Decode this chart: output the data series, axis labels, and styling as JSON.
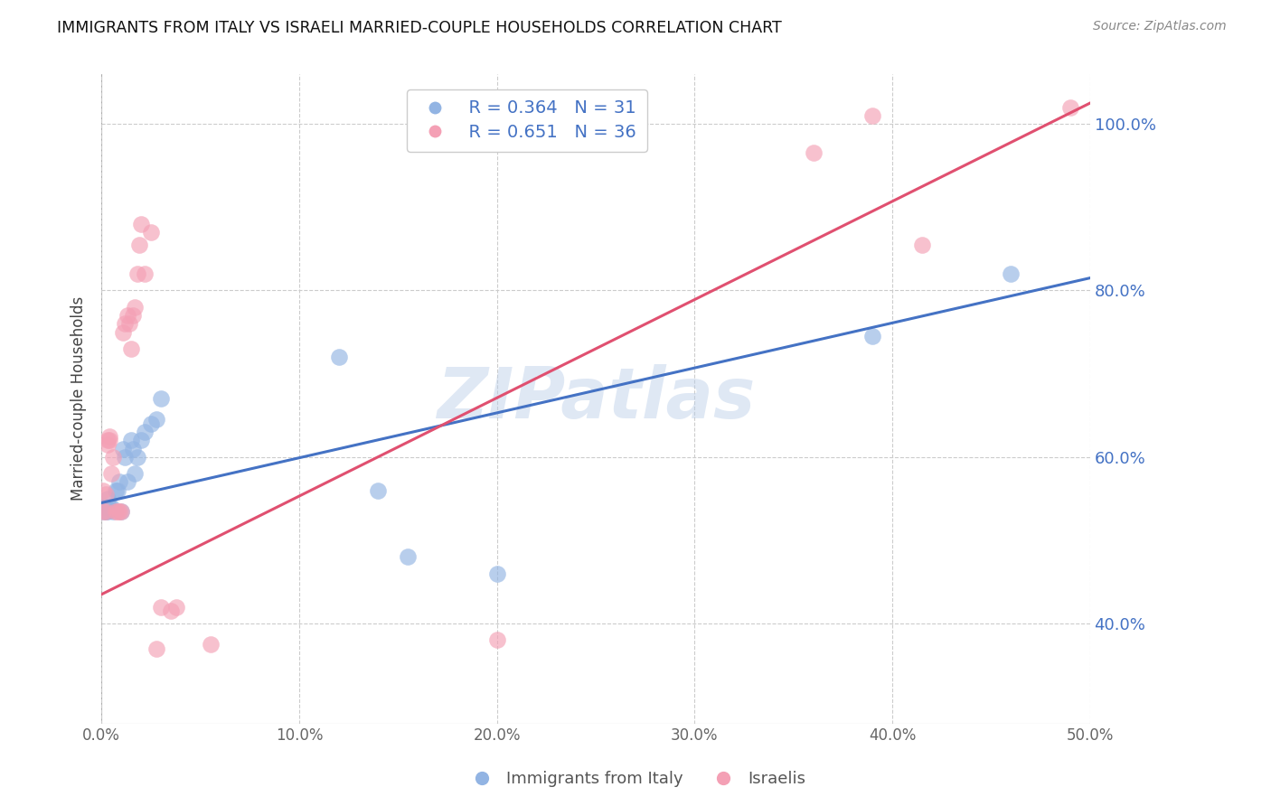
{
  "title": "IMMIGRANTS FROM ITALY VS ISRAELI MARRIED-COUPLE HOUSEHOLDS CORRELATION CHART",
  "source": "Source: ZipAtlas.com",
  "ylabel": "Married-couple Households",
  "xlim": [
    0.0,
    0.5
  ],
  "ylim": [
    0.28,
    1.06
  ],
  "yticks": [
    0.4,
    0.6,
    0.8,
    1.0
  ],
  "xticks": [
    0.0,
    0.1,
    0.2,
    0.3,
    0.4,
    0.5
  ],
  "legend_r_italy": "R = 0.364",
  "legend_n_italy": "N = 31",
  "legend_r_israeli": "R = 0.651",
  "legend_n_israeli": "N = 36",
  "color_italy": "#92b4e3",
  "color_israeli": "#f4a0b5",
  "color_italy_line": "#4472c4",
  "color_israeli_line": "#e05070",
  "color_axis_right": "#4472c4",
  "watermark": "ZIPatlas",
  "italy_x": [
    0.001,
    0.001,
    0.002,
    0.002,
    0.003,
    0.003,
    0.004,
    0.005,
    0.006,
    0.007,
    0.008,
    0.009,
    0.01,
    0.011,
    0.012,
    0.013,
    0.015,
    0.016,
    0.017,
    0.018,
    0.02,
    0.022,
    0.025,
    0.028,
    0.03,
    0.12,
    0.14,
    0.155,
    0.2,
    0.39,
    0.46
  ],
  "italy_y": [
    0.535,
    0.54,
    0.54,
    0.535,
    0.535,
    0.55,
    0.54,
    0.54,
    0.535,
    0.56,
    0.56,
    0.57,
    0.535,
    0.61,
    0.6,
    0.57,
    0.62,
    0.61,
    0.58,
    0.6,
    0.62,
    0.63,
    0.64,
    0.645,
    0.67,
    0.72,
    0.56,
    0.48,
    0.46,
    0.745,
    0.82
  ],
  "israeli_x": [
    0.001,
    0.001,
    0.002,
    0.002,
    0.003,
    0.003,
    0.004,
    0.004,
    0.005,
    0.006,
    0.007,
    0.008,
    0.009,
    0.01,
    0.011,
    0.012,
    0.013,
    0.014,
    0.015,
    0.016,
    0.017,
    0.018,
    0.019,
    0.02,
    0.022,
    0.025,
    0.028,
    0.03,
    0.035,
    0.038,
    0.055,
    0.2,
    0.36,
    0.39,
    0.415,
    0.49
  ],
  "israeli_y": [
    0.535,
    0.56,
    0.535,
    0.555,
    0.62,
    0.615,
    0.62,
    0.625,
    0.58,
    0.6,
    0.535,
    0.535,
    0.535,
    0.535,
    0.75,
    0.76,
    0.77,
    0.76,
    0.73,
    0.77,
    0.78,
    0.82,
    0.855,
    0.88,
    0.82,
    0.87,
    0.37,
    0.42,
    0.415,
    0.42,
    0.375,
    0.38,
    0.965,
    1.01,
    0.855,
    1.02
  ]
}
